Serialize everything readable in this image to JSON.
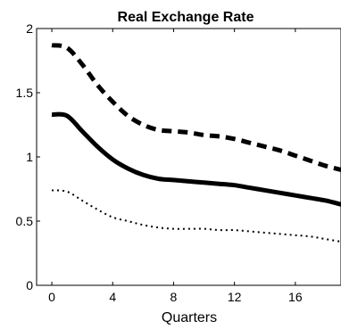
{
  "chart_data": {
    "type": "line",
    "title": "Real Exchange Rate",
    "xlabel": "Quarters",
    "ylabel": "",
    "xlim": [
      -1,
      19
    ],
    "ylim": [
      0,
      2
    ],
    "xticks": [
      0,
      4,
      8,
      12,
      16
    ],
    "yticks": [
      0,
      0.5,
      1,
      1.5,
      2
    ],
    "xtick_labels": [
      "0",
      "4",
      "8",
      "12",
      "16"
    ],
    "ytick_labels": [
      "0",
      "0.5",
      "1",
      "1.5",
      "2"
    ],
    "grid": false,
    "x": [
      0,
      1,
      2,
      3,
      4,
      5,
      6,
      7,
      8,
      9,
      10,
      11,
      12,
      13,
      14,
      15,
      16,
      17,
      18,
      19
    ],
    "series": [
      {
        "style": "dashed",
        "color": "#000000",
        "values": [
          1.87,
          1.85,
          1.72,
          1.56,
          1.43,
          1.32,
          1.25,
          1.21,
          1.2,
          1.19,
          1.17,
          1.16,
          1.14,
          1.11,
          1.08,
          1.05,
          1.01,
          0.97,
          0.93,
          0.9
        ]
      },
      {
        "style": "solid",
        "color": "#000000",
        "values": [
          1.33,
          1.32,
          1.2,
          1.08,
          0.98,
          0.91,
          0.86,
          0.83,
          0.82,
          0.81,
          0.8,
          0.79,
          0.78,
          0.76,
          0.74,
          0.72,
          0.7,
          0.68,
          0.66,
          0.63
        ]
      },
      {
        "style": "dotted",
        "color": "#000000",
        "values": [
          0.74,
          0.73,
          0.66,
          0.59,
          0.53,
          0.5,
          0.47,
          0.45,
          0.44,
          0.44,
          0.44,
          0.43,
          0.43,
          0.42,
          0.41,
          0.4,
          0.39,
          0.38,
          0.36,
          0.34
        ]
      }
    ]
  }
}
